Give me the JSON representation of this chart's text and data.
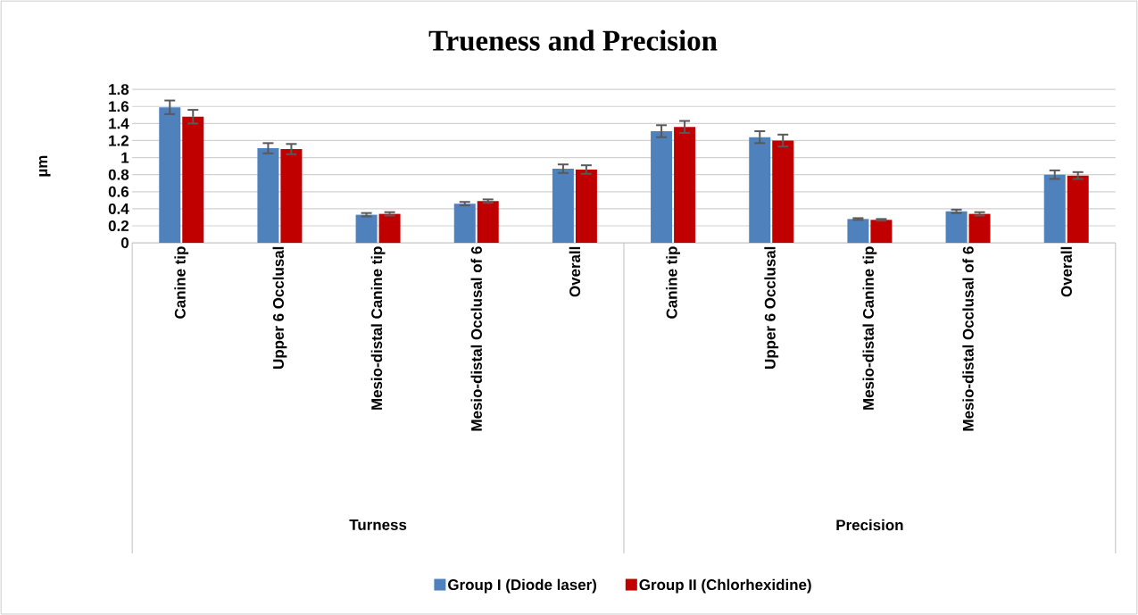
{
  "chart_data": {
    "type": "bar",
    "title": "Trueness and Precision",
    "ylabel": "µm",
    "categories": [
      "Canine tip",
      "Upper 6 Occlusal",
      "Mesio-distal Canine tip",
      "Mesio-distal Occlusal of 6",
      "Overall",
      "Canine tip",
      "Upper 6 Occlusal",
      "Mesio-distal Canine tip",
      "Mesio-distal Occlusal of 6",
      "Overall"
    ],
    "series": [
      {
        "name": "Group I (Diode laser)",
        "color": "#4f81bd",
        "values": [
          1.59,
          1.11,
          0.33,
          0.46,
          0.87,
          1.31,
          1.24,
          0.28,
          0.37,
          0.8
        ],
        "errors": [
          0.08,
          0.06,
          0.02,
          0.02,
          0.05,
          0.07,
          0.07,
          0.01,
          0.02,
          0.05
        ]
      },
      {
        "name": "Group II (Chlorhexidine)",
        "color": "#c00000",
        "values": [
          1.48,
          1.1,
          0.34,
          0.49,
          0.86,
          1.36,
          1.2,
          0.27,
          0.34,
          0.79
        ],
        "errors": [
          0.08,
          0.06,
          0.02,
          0.02,
          0.05,
          0.07,
          0.07,
          0.01,
          0.02,
          0.04
        ]
      }
    ],
    "annotations": [
      "Turness",
      "Precision"
    ],
    "ylim": [
      0,
      1.8
    ],
    "yticks": [
      0,
      0.2,
      0.4,
      0.6,
      0.8,
      1,
      1.2,
      1.4,
      1.6,
      1.8
    ],
    "grid": "y",
    "legend": "bottom"
  }
}
